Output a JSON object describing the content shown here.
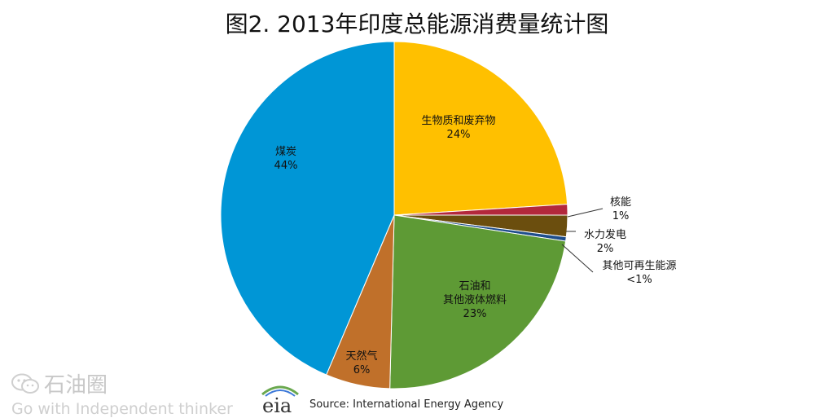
{
  "title": "图2. 2013年印度总能源消费量统计图",
  "chart_data": {
    "type": "pie",
    "title": "图2. 2013年印度总能源消费量统计图",
    "start_angle_deg": 0,
    "direction": "clockwise",
    "slices": [
      {
        "name": "生物质和废弃物",
        "lines": [
          "生物质和废弃物"
        ],
        "value": 24,
        "label": "24%",
        "color": "#FFC000",
        "label_pos": "inside"
      },
      {
        "name": "核能",
        "lines": [
          "核能"
        ],
        "value": 1,
        "label": "1%",
        "color": "#B3283C",
        "label_pos": "outside"
      },
      {
        "name": "水力发电",
        "lines": [
          "水力发电"
        ],
        "value": 2,
        "label": "2%",
        "color": "#6B4E0E",
        "label_pos": "outside"
      },
      {
        "name": "其他可再生能源",
        "lines": [
          "其他可再生能源"
        ],
        "value": 0.4,
        "label": "<1%",
        "color": "#1F4E8C",
        "label_pos": "outside"
      },
      {
        "name": "石油和其他液体燃料",
        "lines": [
          "石油和",
          "其他液体燃料"
        ],
        "value": 23,
        "label": "23%",
        "color": "#5E9A35",
        "label_pos": "inside"
      },
      {
        "name": "天然气",
        "lines": [
          "天然气"
        ],
        "value": 6,
        "label": "6%",
        "color": "#C0702A",
        "label_pos": "inside"
      },
      {
        "name": "煤炭",
        "lines": [
          "煤炭"
        ],
        "value": 43.6,
        "label": "44%",
        "color": "#0096D6",
        "label_pos": "inside"
      }
    ]
  },
  "source": "Source: International Energy Agency",
  "eia_logo_text": "eia",
  "watermark": {
    "name": "石油圈",
    "tagline": "Go with Independent thinker",
    "icon": "wechat-icon"
  }
}
